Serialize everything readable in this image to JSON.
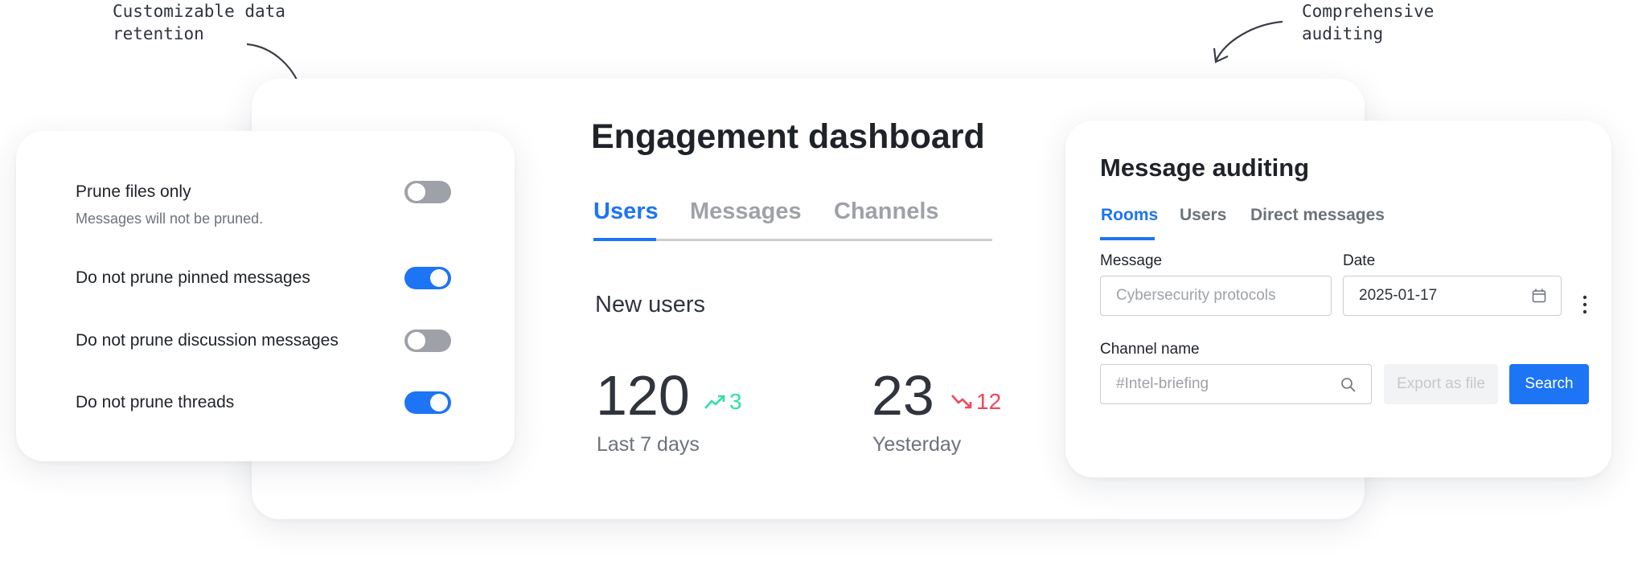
{
  "annotations": {
    "retention": "Customizable data\nretention",
    "auditing": "Comprehensive\nauditing"
  },
  "retention_settings": {
    "rows": [
      {
        "label": "Prune files only",
        "hint": "Messages will not be pruned.",
        "enabled": false
      },
      {
        "label": "Do not prune pinned messages",
        "enabled": true
      },
      {
        "label": "Do not prune discussion messages",
        "enabled": false
      },
      {
        "label": "Do not prune threads",
        "enabled": true
      }
    ]
  },
  "dashboard": {
    "title": "Engagement dashboard",
    "tabs": [
      "Users",
      "Messages",
      "Channels"
    ],
    "section": "New users",
    "stats": [
      {
        "value": "120",
        "change": "3",
        "direction": "up",
        "period": "Last 7 days"
      },
      {
        "value": "23",
        "change": "12",
        "direction": "down",
        "period": "Yesterday"
      }
    ]
  },
  "auditing": {
    "title": "Message auditing",
    "tabs": [
      "Rooms",
      "Users",
      "Direct messages"
    ],
    "message_label": "Message",
    "message_placeholder": "Cybersecurity protocols",
    "date_label": "Date",
    "date_value": "2025-01-17",
    "channel_label": "Channel name",
    "channel_placeholder": "#Intel-briefing",
    "export_button": "Export as file",
    "search_button": "Search"
  }
}
